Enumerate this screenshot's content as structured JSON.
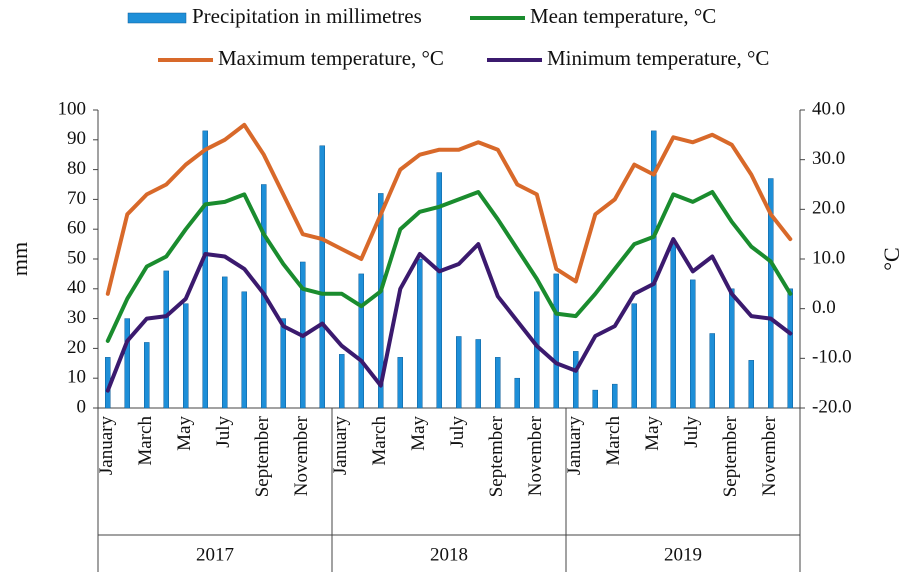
{
  "chart_data": {
    "type": "bar_line",
    "categories": [
      "January",
      null,
      "March",
      null,
      "May",
      null,
      "July",
      null,
      "September",
      null,
      "November",
      null,
      "January",
      null,
      "March",
      null,
      "May",
      null,
      "July",
      null,
      "September",
      null,
      "November",
      null,
      "January",
      null,
      "March",
      null,
      "May",
      null,
      "July",
      null,
      "September",
      null,
      "November",
      null
    ],
    "groups": [
      "2017",
      "2018",
      "2019"
    ],
    "ylabel": "mm",
    "y2label": "°C",
    "ylim": [
      0,
      100
    ],
    "yticks": [
      0,
      10,
      20,
      30,
      40,
      50,
      60,
      70,
      80,
      90,
      100
    ],
    "y2lim": [
      -20,
      40
    ],
    "y2ticks": [
      {
        "value": -20,
        "label": "-20.0"
      },
      {
        "value": -10,
        "label": "-10.0"
      },
      {
        "value": 0,
        "label": "0.0"
      },
      {
        "value": 10,
        "label": "10.0"
      },
      {
        "value": 20,
        "label": "20.0"
      },
      {
        "value": 30,
        "label": "30.0"
      },
      {
        "value": 40,
        "label": "40.0"
      }
    ],
    "legend": "top",
    "series": [
      {
        "name": "Precipitation in millimetres",
        "type": "bar",
        "axis": "y",
        "color": "#1e8fd8",
        "values": [
          17,
          30,
          22,
          46,
          35,
          93,
          44,
          39,
          75,
          30,
          49,
          88,
          18,
          45,
          72,
          17,
          50,
          79,
          24,
          23,
          17,
          10,
          39,
          45,
          19,
          6,
          8,
          35,
          93,
          55,
          43,
          25,
          40,
          16,
          77,
          40
        ]
      },
      {
        "name": "Mean temperature, °C",
        "type": "line",
        "axis": "y2",
        "color": "#1a8c2e",
        "values": [
          -6.5,
          2,
          8.5,
          10.5,
          16,
          21,
          21.5,
          23,
          15,
          9,
          4,
          3,
          3,
          0.5,
          3.5,
          16,
          19.5,
          20.5,
          22,
          23.5,
          18,
          12,
          6,
          -1,
          -1.5,
          3,
          8,
          13,
          14.5,
          23,
          21.5,
          23.5,
          17.5,
          12.5,
          9.5,
          3
        ]
      },
      {
        "name": "Maximum temperature, °C",
        "type": "line",
        "axis": "y2",
        "color": "#d8692a",
        "values": [
          3,
          19,
          23,
          25,
          29,
          32,
          34,
          37,
          31,
          23,
          15,
          14,
          12,
          10,
          19,
          28,
          31,
          32,
          32,
          33.5,
          32,
          25,
          23,
          8,
          5.5,
          19,
          22,
          29,
          27,
          34.5,
          33.5,
          35,
          33,
          27,
          19,
          14
        ]
      },
      {
        "name": "Minimum temperature, °C",
        "type": "line",
        "axis": "y2",
        "color": "#3b1a6e",
        "values": [
          -16.5,
          -6.5,
          -2,
          -1.5,
          2,
          11,
          10.5,
          8,
          3,
          -3.5,
          -5.5,
          -3,
          -7.5,
          -10.5,
          -15.5,
          4,
          11,
          7.5,
          9,
          13,
          2.5,
          -2.5,
          -7.5,
          -11,
          -12.5,
          -5.5,
          -3.5,
          3,
          5,
          14,
          7.5,
          10.5,
          3,
          -1.5,
          -2,
          -5
        ]
      }
    ]
  }
}
